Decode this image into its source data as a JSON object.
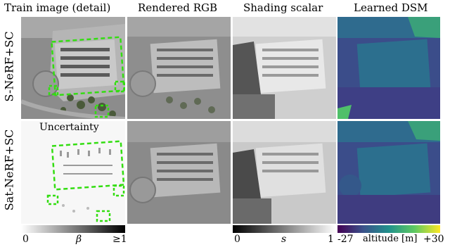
{
  "columns": {
    "train": "Train image (detail)",
    "rgb": "Rendered  RGB",
    "shading": "Shading  scalar",
    "dsm": "Learned  DSM"
  },
  "rows": {
    "top": "S-NeRF+SC",
    "bottom": "Sat-NeRF+SC"
  },
  "uncertainty_label": "Uncertainty",
  "colorbars": {
    "beta": {
      "min": "0",
      "symbol": "β",
      "max": "≥1"
    },
    "shading": {
      "min": "0",
      "symbol": "s",
      "max": "1"
    },
    "altitude": {
      "min": "-27",
      "label": "altitude [m]",
      "max": "+30"
    }
  },
  "colors": {
    "highlight_box": "#33dd11",
    "dsm_dark": "#3b1b66",
    "dsm_mid": "#2c6f8e",
    "dsm_high": "#4fc06a",
    "dsm_top": "#f0e030"
  }
}
